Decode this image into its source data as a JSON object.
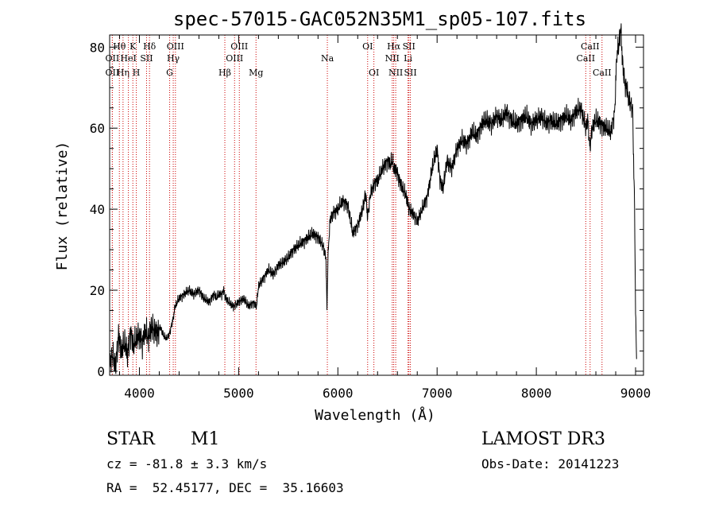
{
  "chart_data": {
    "type": "line",
    "title": "spec-57015-GAC052N35M1_sp05-107.fits",
    "xlabel": "Wavelength (Å)",
    "ylabel": "Flux (relative)",
    "xlim": [
      3700,
      9080
    ],
    "ylim": [
      -1,
      83
    ],
    "xticks": [
      4000,
      5000,
      6000,
      7000,
      8000,
      9000
    ],
    "yticks": [
      0,
      20,
      40,
      60,
      80
    ],
    "grid": false,
    "series": [
      {
        "name": "flux",
        "x": [
          3700,
          3730,
          3760,
          3790,
          3820,
          3850,
          3880,
          3910,
          3940,
          3970,
          4000,
          4030,
          4060,
          4090,
          4120,
          4150,
          4180,
          4210,
          4240,
          4270,
          4300,
          4320,
          4340,
          4360,
          4380,
          4400,
          4450,
          4500,
          4550,
          4600,
          4650,
          4700,
          4750,
          4780,
          4800,
          4830,
          4850,
          4870,
          4900,
          4950,
          5000,
          5050,
          5100,
          5150,
          5180,
          5200,
          5250,
          5300,
          5350,
          5400,
          5450,
          5500,
          5550,
          5600,
          5650,
          5700,
          5750,
          5800,
          5850,
          5880,
          5890,
          5900,
          5920,
          5950,
          6000,
          6050,
          6100,
          6150,
          6200,
          6250,
          6280,
          6300,
          6330,
          6350,
          6380,
          6400,
          6450,
          6500,
          6530,
          6550,
          6563,
          6580,
          6600,
          6620,
          6650,
          6680,
          6700,
          6720,
          6750,
          6780,
          6800,
          6850,
          6900,
          6950,
          7000,
          7030,
          7060,
          7100,
          7150,
          7200,
          7250,
          7300,
          7350,
          7400,
          7450,
          7500,
          7550,
          7600,
          7650,
          7700,
          7750,
          7800,
          7850,
          7900,
          7950,
          8000,
          8050,
          8100,
          8150,
          8200,
          8250,
          8300,
          8350,
          8400,
          8450,
          8480,
          8500,
          8520,
          8540,
          8560,
          8600,
          8650,
          8700,
          8750,
          8790,
          8810,
          8830,
          8850,
          8870,
          8890,
          8910,
          8930,
          8950,
          8970,
          8990,
          9000,
          9010
        ],
        "y": [
          2,
          4,
          1,
          9,
          5,
          7,
          4,
          10,
          6,
          8,
          9,
          7,
          10,
          8,
          11,
          10,
          9,
          11,
          9,
          8,
          9,
          11,
          13,
          16,
          17,
          18,
          19,
          20,
          19,
          20,
          18,
          17,
          19,
          18,
          19,
          19,
          20,
          18,
          17,
          16,
          17,
          18,
          16,
          17,
          16,
          21,
          23,
          25,
          24,
          26,
          27,
          28,
          30,
          31,
          32,
          33,
          34,
          33,
          31,
          28,
          15,
          28,
          37,
          39,
          40,
          42,
          41,
          34,
          36,
          40,
          44,
          38,
          44,
          45,
          47,
          47,
          50,
          52,
          51,
          52,
          50,
          50,
          49,
          47,
          45,
          44,
          42,
          40,
          39,
          38,
          37,
          40,
          43,
          50,
          55,
          47,
          45,
          52,
          50,
          55,
          57,
          56,
          59,
          58,
          61,
          62,
          61,
          63,
          62,
          64,
          62,
          61,
          62,
          63,
          61,
          62,
          63,
          61,
          62,
          61,
          62,
          63,
          62,
          64,
          65,
          62,
          60,
          62,
          55,
          60,
          62,
          61,
          60,
          59,
          64,
          78,
          80,
          85,
          76,
          71,
          70,
          67,
          66,
          65,
          40,
          15,
          3
        ]
      }
    ],
    "line_markers": [
      {
        "name": "OII",
        "wl": 3727,
        "row": 2
      },
      {
        "name": "OII",
        "wl": 3727,
        "row": 3
      },
      {
        "name": "Hθ",
        "wl": 3798,
        "row": 1
      },
      {
        "name": "Hη",
        "wl": 3835,
        "row": 3
      },
      {
        "name": "HeI",
        "wl": 3889,
        "row": 2
      },
      {
        "name": "K",
        "wl": 3934,
        "row": 1
      },
      {
        "name": "H",
        "wl": 3969,
        "row": 3
      },
      {
        "name": "SII",
        "wl": 4072,
        "row": 2
      },
      {
        "name": "Hδ",
        "wl": 4102,
        "row": 1
      },
      {
        "name": "G",
        "wl": 4305,
        "row": 3
      },
      {
        "name": "Hγ",
        "wl": 4341,
        "row": 2
      },
      {
        "name": "OIII",
        "wl": 4363,
        "row": 1
      },
      {
        "name": "Hβ",
        "wl": 4861,
        "row": 3
      },
      {
        "name": "OIII",
        "wl": 4959,
        "row": 2
      },
      {
        "name": "OIII",
        "wl": 5007,
        "row": 1
      },
      {
        "name": "Mg",
        "wl": 5175,
        "row": 3
      },
      {
        "name": "Na",
        "wl": 5894,
        "row": 2
      },
      {
        "name": "OI",
        "wl": 6300,
        "row": 1
      },
      {
        "name": "OI",
        "wl": 6363,
        "row": 3
      },
      {
        "name": "NII",
        "wl": 6548,
        "row": 2
      },
      {
        "name": "Hα",
        "wl": 6563,
        "row": 1
      },
      {
        "name": "NII",
        "wl": 6583,
        "row": 3
      },
      {
        "name": "Li",
        "wl": 6707,
        "row": 2
      },
      {
        "name": "SII",
        "wl": 6716,
        "row": 1
      },
      {
        "name": "SII",
        "wl": 6731,
        "row": 3
      },
      {
        "name": "CaII",
        "wl": 8498,
        "row": 2
      },
      {
        "name": "CaII",
        "wl": 8542,
        "row": 1
      },
      {
        "name": "CaII",
        "wl": 8662,
        "row": 3
      }
    ],
    "marker_color": "#cc0000"
  },
  "info": {
    "class_label": "STAR",
    "subclass": "M1",
    "survey": "LAMOST DR3",
    "redshift": "cz = -81.8 ± 3.3 km/s",
    "obs_date": "Obs-Date: 20141223",
    "coords": "RA =  52.45177, DEC =  35.16603"
  }
}
